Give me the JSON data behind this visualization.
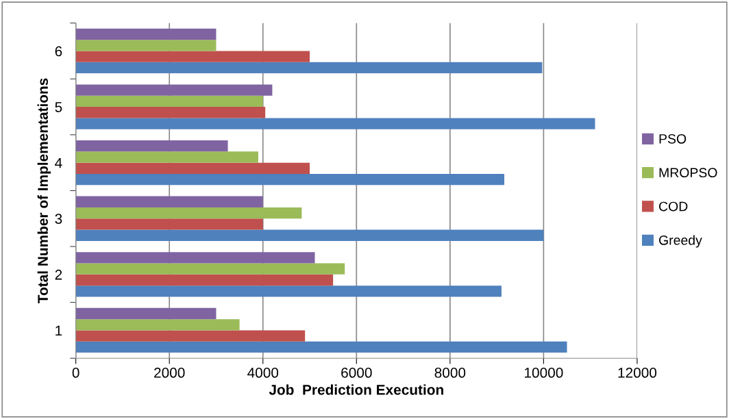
{
  "chart_data": {
    "type": "bar",
    "orientation": "horizontal",
    "xlabel": "Job  Prediction Execution",
    "ylabel": "Total Number of Implementations",
    "categories": [
      "6",
      "5",
      "4",
      "3",
      "2",
      "1"
    ],
    "series": [
      {
        "name": "Greedy",
        "color": "#4f81bd",
        "values": [
          9970,
          11100,
          9160,
          10000,
          9100,
          10500
        ]
      },
      {
        "name": "COD",
        "color": "#c0504d",
        "values": [
          5000,
          4050,
          5000,
          4000,
          5500,
          4900
        ]
      },
      {
        "name": "MROPSO",
        "color": "#9bbb59",
        "values": [
          3000,
          4000,
          3900,
          4830,
          5750,
          3500
        ]
      },
      {
        "name": "PSO",
        "color": "#8064a2",
        "values": [
          3000,
          4200,
          3250,
          4000,
          5110,
          3000
        ]
      }
    ],
    "xlim": [
      0,
      12000
    ],
    "xticks": [
      0,
      2000,
      4000,
      6000,
      8000,
      10000,
      12000
    ],
    "grid": "x",
    "legend": "right"
  }
}
